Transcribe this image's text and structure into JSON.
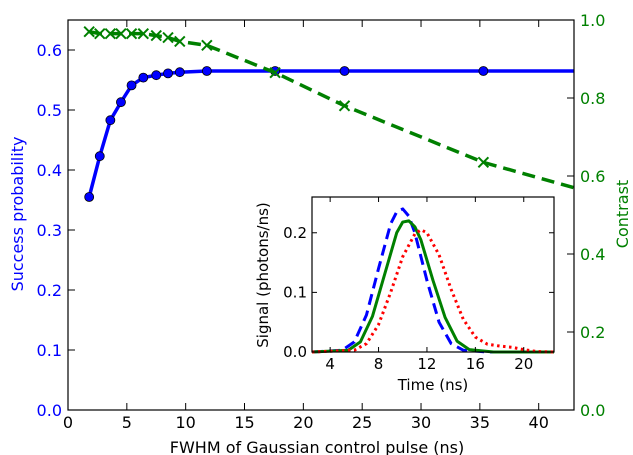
{
  "chart_data": [
    {
      "type": "line",
      "xlabel": "FWHM of Gaussian control pulse (ns)",
      "ylabel_left": "Success probability",
      "ylabel_right": "Contrast",
      "xlim": [
        0,
        43
      ],
      "ylim_left": [
        0.0,
        0.65
      ],
      "ylim_right": [
        0.0,
        1.0
      ],
      "x_ticks": [
        0,
        5,
        10,
        15,
        20,
        25,
        30,
        35,
        40
      ],
      "y_ticks_left": [
        0.0,
        0.1,
        0.2,
        0.3,
        0.4,
        0.5,
        0.6
      ],
      "y_ticks_right": [
        0.0,
        0.2,
        0.4,
        0.6,
        0.8,
        1.0
      ],
      "y_ticks_left_labels": [
        "0.0",
        "0.1",
        "0.2",
        "0.3",
        "0.4",
        "0.5",
        "0.6"
      ],
      "y_ticks_right_labels": [
        "0.0",
        "0.2",
        "0.4",
        "0.6",
        "0.8",
        "1.0"
      ],
      "grid": false,
      "colors": {
        "left_axis": "#0000ff",
        "right_axis": "#008000"
      },
      "series": [
        {
          "axis": "left",
          "color": "#0000ff",
          "style": "solid-line-circle-markers",
          "x": [
            1.8,
            2.7,
            3.6,
            4.5,
            5.4,
            6.4,
            7.5,
            8.5,
            9.5,
            11.8,
            17.6,
            23.5,
            35.3,
            43.0
          ],
          "y": [
            0.355,
            0.423,
            0.483,
            0.513,
            0.541,
            0.554,
            0.558,
            0.561,
            0.563,
            0.565,
            0.565,
            0.565,
            0.565,
            0.565
          ],
          "marker_count": 13
        },
        {
          "axis": "right",
          "color": "#008000",
          "style": "dashed-line-x-markers",
          "x": [
            1.8,
            2.7,
            3.6,
            4.5,
            5.4,
            6.4,
            7.5,
            8.5,
            9.5,
            11.8,
            17.6,
            23.5,
            35.3,
            43.0
          ],
          "y": [
            0.97,
            0.965,
            0.965,
            0.965,
            0.965,
            0.965,
            0.96,
            0.955,
            0.945,
            0.935,
            0.865,
            0.78,
            0.635,
            0.57
          ],
          "marker_count": 13
        }
      ]
    },
    {
      "type": "line",
      "xlabel": "Time (ns)",
      "ylabel": "Signal (photons/ns)",
      "xlim": [
        2.5,
        22.5
      ],
      "ylim": [
        0.0,
        0.26
      ],
      "x_ticks": [
        4,
        8,
        12,
        16,
        20
      ],
      "y_ticks": [
        0.0,
        0.1,
        0.2
      ],
      "y_ticks_labels": [
        "0.0",
        "0.1",
        "0.2"
      ],
      "grid": false,
      "series": [
        {
          "color": "#0000ff",
          "style": "dashed",
          "x": [
            2.5,
            5,
            6,
            7,
            8,
            9,
            9.5,
            10,
            10.5,
            11,
            12,
            13,
            14,
            15,
            17,
            22.5
          ],
          "y": [
            0,
            0.003,
            0.017,
            0.062,
            0.14,
            0.215,
            0.235,
            0.24,
            0.228,
            0.2,
            0.12,
            0.05,
            0.014,
            0.003,
            0,
            0
          ]
        },
        {
          "color": "#008000",
          "style": "solid",
          "x": [
            2.5,
            5.5,
            6.5,
            7.5,
            8.5,
            9.5,
            10,
            10.5,
            11,
            11.5,
            12.5,
            13.5,
            14.5,
            15.5,
            17.5,
            22.5
          ],
          "y": [
            0,
            0.003,
            0.017,
            0.06,
            0.13,
            0.2,
            0.218,
            0.22,
            0.21,
            0.188,
            0.12,
            0.058,
            0.018,
            0.004,
            0,
            0
          ]
        },
        {
          "color": "#ff0000",
          "style": "dotted",
          "x": [
            2.5,
            6,
            7,
            8,
            9,
            10,
            11,
            11.5,
            12,
            13,
            14,
            15,
            16,
            17,
            18,
            19,
            20,
            21,
            22.5
          ],
          "y": [
            0,
            0.003,
            0.014,
            0.046,
            0.1,
            0.16,
            0.198,
            0.205,
            0.2,
            0.163,
            0.105,
            0.055,
            0.025,
            0.013,
            0.01,
            0.008,
            0.004,
            0.001,
            0
          ]
        }
      ]
    }
  ]
}
